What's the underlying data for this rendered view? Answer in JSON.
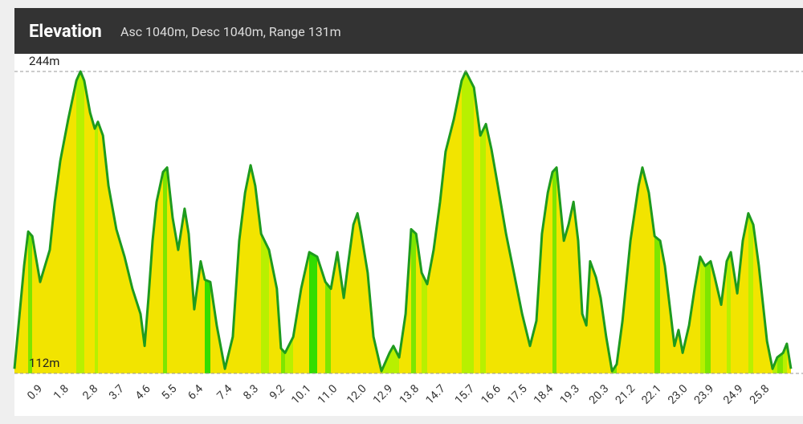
{
  "chart_data": {
    "type": "area",
    "title": "Elevation",
    "subtitle": "Asc 1040m, Desc 1040m, Range 131m",
    "x": [
      0.0,
      0.33,
      0.47,
      0.61,
      0.88,
      1.02,
      1.21,
      1.38,
      1.57,
      1.84,
      2.12,
      2.26,
      2.39,
      2.59,
      2.75,
      2.86,
      3.03,
      3.22,
      3.49,
      3.77,
      4.04,
      4.32,
      4.46,
      4.59,
      4.73,
      4.87,
      5.09,
      5.23,
      5.42,
      5.61,
      5.83,
      5.97,
      6.16,
      6.38,
      6.52,
      6.71,
      6.93,
      7.21,
      7.48,
      7.7,
      7.9,
      8.09,
      8.25,
      8.45,
      8.72,
      8.99,
      9.13,
      9.27,
      9.55,
      9.82,
      10.1,
      10.37,
      10.65,
      10.84,
      11.06,
      11.28,
      11.42,
      11.61,
      11.75,
      11.88,
      12.1,
      12.3,
      12.57,
      12.85,
      12.98,
      13.18,
      13.4,
      13.59,
      13.76,
      13.95,
      14.14,
      14.36,
      14.58,
      14.77,
      15.05,
      15.32,
      15.46,
      15.74,
      15.96,
      16.15,
      16.34,
      16.56,
      16.84,
      17.11,
      17.39,
      17.66,
      17.88,
      18.07,
      18.27,
      18.43,
      18.57,
      18.71,
      18.82,
      18.98,
      19.15,
      19.31,
      19.45,
      19.59,
      19.72,
      19.92,
      20.08,
      20.27,
      20.47,
      20.63,
      20.83,
      21.1,
      21.38,
      21.51,
      21.73,
      21.93,
      22.12,
      22.28,
      22.48,
      22.61,
      22.75,
      22.89,
      23.11,
      23.3,
      23.49,
      23.66,
      23.85,
      23.99,
      24.21,
      24.4,
      24.54,
      24.76,
      24.95,
      25.14,
      25.31,
      25.5,
      25.78,
      25.97,
      26.13,
      26.33,
      26.46,
      26.6
    ],
    "values": [
      114,
      159,
      174,
      172,
      152,
      158,
      166,
      187,
      205,
      223,
      240,
      244,
      240,
      226,
      219,
      222,
      216,
      194,
      175,
      163,
      149,
      138,
      124,
      145,
      170,
      187,
      200,
      202,
      180,
      166,
      184,
      173,
      140,
      161,
      153,
      152,
      133,
      114,
      128,
      170,
      191,
      203,
      194,
      173,
      166,
      149,
      123,
      121,
      128,
      149,
      165,
      163,
      152,
      149,
      165,
      145,
      159,
      177,
      182,
      173,
      156,
      128,
      113,
      121,
      124,
      119,
      138,
      175,
      173,
      156,
      151,
      166,
      187,
      209,
      223,
      240,
      244,
      237,
      216,
      221,
      210,
      194,
      173,
      156,
      138,
      124,
      135,
      173,
      191,
      200,
      202,
      184,
      170,
      177,
      187,
      170,
      138,
      133,
      161,
      154,
      145,
      128,
      113,
      116,
      135,
      170,
      194,
      202,
      191,
      172,
      170,
      159,
      138,
      124,
      131,
      121,
      133,
      149,
      163,
      159,
      161,
      154,
      142,
      161,
      165,
      147,
      170,
      182,
      177,
      159,
      126,
      114,
      119,
      121,
      125,
      114
    ],
    "color": "#1e9b1e",
    "xlim": [
      0,
      26.6
    ],
    "ylim": [
      112,
      244
    ],
    "yticks": [
      {
        "value": 112,
        "label": "112m"
      },
      {
        "value": 244,
        "label": "244m"
      }
    ],
    "xticks": [
      0.9,
      1.8,
      2.8,
      3.7,
      4.6,
      5.5,
      6.4,
      7.4,
      8.3,
      9.2,
      10.1,
      {
        "value": 11,
        "label": "11.0"
      },
      {
        "value": 12,
        "label": "12.0"
      },
      12.9,
      13.8,
      14.7,
      15.7,
      16.6,
      17.5,
      18.4,
      19.3,
      20.3,
      21.2,
      22.1,
      {
        "value": 23,
        "label": "23.0"
      },
      23.9,
      24.9,
      25.8
    ],
    "grid": true
  }
}
